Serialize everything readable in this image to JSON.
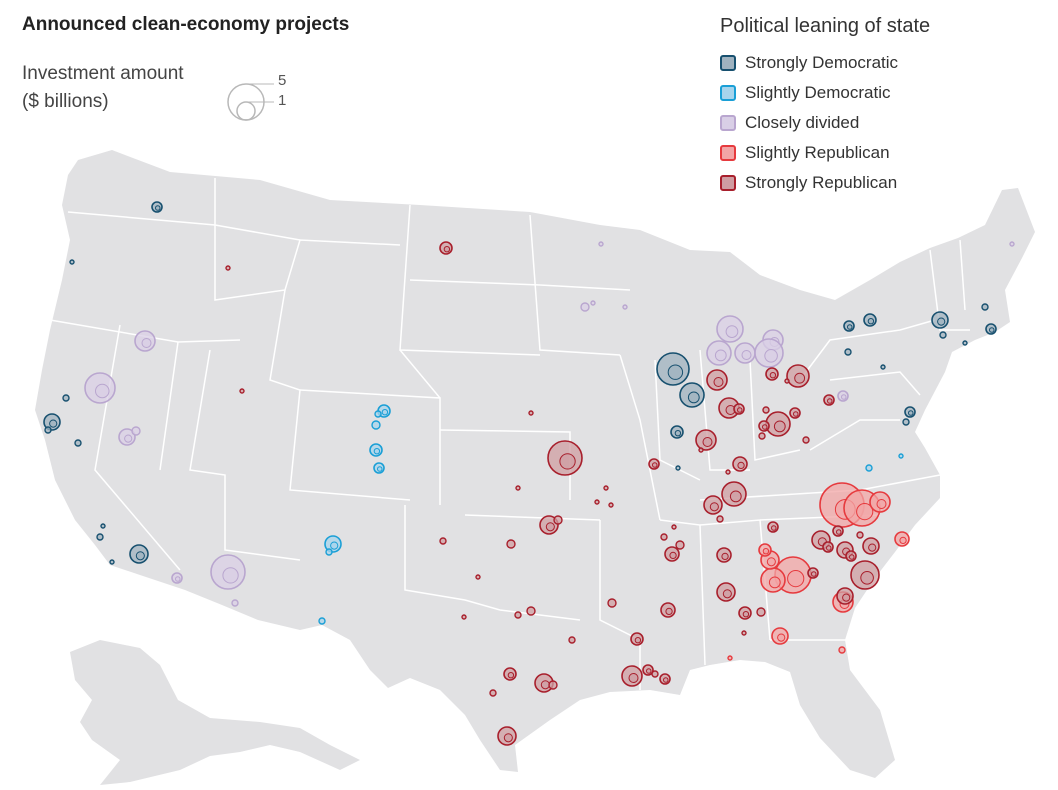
{
  "title": "Announced clean-economy projects",
  "size_legend": {
    "label_line1": "Investment amount",
    "label_line2": "($ billions)",
    "large_value": "5",
    "small_value": "1"
  },
  "legend": {
    "title": "Political leaning of state",
    "items": [
      {
        "label": "Strongly Democratic",
        "color": "#17506f",
        "fill": "#9fb2bf"
      },
      {
        "label": "Slightly Democratic",
        "color": "#1a9fd6",
        "fill": "#a7d4ec"
      },
      {
        "label": "Closely divided",
        "color": "#b9a6cf",
        "fill": "#d9cfe6"
      },
      {
        "label": "Slightly Republican",
        "color": "#e63a3e",
        "fill": "#f2a5a6"
      },
      {
        "label": "Strongly Republican",
        "color": "#a81f2c",
        "fill": "#cf9da2"
      }
    ]
  },
  "colors": {
    "map_fill": "#e1e1e3",
    "border": "#ffffff"
  }
}
